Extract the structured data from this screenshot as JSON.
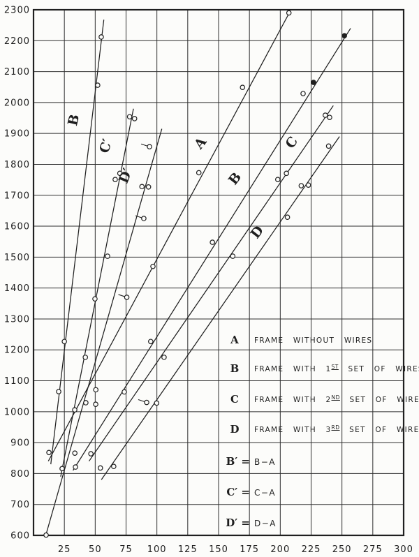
{
  "figure": {
    "background": "#fcfcfa",
    "ink": "#1f1f1f",
    "grid_color": "#2e2e2e"
  },
  "chart_data": {
    "type": "line",
    "title": "",
    "xlabel": "",
    "ylabel": "",
    "x_axis": {
      "min": 0,
      "max": 300,
      "gridline_step": 25,
      "ticks": [
        25,
        50,
        75,
        100,
        125,
        150,
        175,
        200,
        225,
        250,
        275,
        300
      ]
    },
    "y_axis": {
      "min": 600,
      "max": 2300,
      "gridline_step": 100,
      "ticks": [
        600,
        700,
        800,
        900,
        1000,
        1100,
        1200,
        1300,
        1400,
        1500,
        1600,
        1700,
        1800,
        1900,
        2000,
        2100,
        2200,
        2300
      ]
    },
    "grid": true,
    "series": [
      {
        "name": "A",
        "label": "A",
        "label_pos": [
          138,
          1860
        ],
        "label_rot": -52,
        "line": [
          [
            12,
            840
          ],
          [
            208,
            2295
          ]
        ],
        "points": [
          [
            12.5,
            868
          ],
          [
            96.8,
            1470
          ],
          [
            134,
            1773
          ],
          [
            169.4,
            2049
          ],
          [
            207,
            2290
          ]
        ],
        "filled": [],
        "tails": []
      },
      {
        "name": "B",
        "label": "B",
        "label_pos": [
          166,
          1745
        ],
        "label_rot": -52,
        "line": [
          [
            32,
            810
          ],
          [
            257,
            2240
          ]
        ],
        "points": [
          [
            34,
            821
          ],
          [
            73.6,
            1064
          ],
          [
            95,
            1227
          ],
          [
            145,
            1548
          ],
          [
            218.5,
            2029
          ],
          [
            227,
            2065
          ],
          [
            252,
            2216
          ]
        ],
        "filled": [
          5,
          6
        ],
        "tails": []
      },
      {
        "name": "C",
        "label": "C",
        "label_pos": [
          212,
          1862
        ],
        "label_rot": -52,
        "line": [
          [
            45,
            840
          ],
          [
            243,
            1990
          ]
        ],
        "points": [
          [
            46.5,
            864
          ],
          [
            105.8,
            1176
          ],
          [
            161.5,
            1503
          ],
          [
            198,
            1751
          ],
          [
            205,
            1771
          ],
          [
            236.5,
            1959
          ],
          [
            240,
            1952
          ]
        ],
        "filled": [],
        "tails": []
      },
      {
        "name": "D",
        "label": "D",
        "label_pos": [
          184,
          1572
        ],
        "label_rot": -52,
        "line": [
          [
            55,
            780
          ],
          [
            248,
            1890
          ]
        ],
        "points": [
          [
            54.2,
            818
          ],
          [
            65,
            823
          ],
          [
            91.7,
            1030
          ],
          [
            99.8,
            1028
          ],
          [
            205.8,
            1629
          ],
          [
            217,
            1731
          ],
          [
            222.8,
            1733
          ],
          [
            239.2,
            1859
          ]
        ],
        "filled": [],
        "tails": [
          2
        ]
      },
      {
        "name": "B-prime",
        "label": "B",
        "label_pos": [
          36,
          1940
        ],
        "label_rot": -76,
        "line": [
          [
            14,
            830
          ],
          [
            57,
            2268
          ]
        ],
        "points": [
          [
            20.4,
            1065
          ],
          [
            25,
            1227
          ],
          [
            52,
            2056
          ],
          [
            54.9,
            2212
          ]
        ],
        "filled": [],
        "tails": []
      },
      {
        "name": "C-prime",
        "label": "C′",
        "label_pos": [
          62,
          1855
        ],
        "label_rot": -72,
        "line": [
          [
            22,
            790
          ],
          [
            81,
            1980
          ]
        ],
        "points": [
          [
            23.2,
            816
          ],
          [
            33.4,
            1006
          ],
          [
            42,
            1176
          ],
          [
            49.8,
            1365
          ],
          [
            60,
            1503
          ],
          [
            66.2,
            1751
          ],
          [
            70,
            1771
          ],
          [
            77.9,
            1954
          ],
          [
            81.9,
            1948
          ]
        ],
        "filled": [],
        "tails": []
      },
      {
        "name": "D-prime",
        "label": "D′",
        "label_pos": [
          78,
          1758
        ],
        "label_rot": -68,
        "line": [
          [
            10,
            601
          ],
          [
            104,
            1915
          ]
        ],
        "points": [
          [
            10.2,
            601
          ],
          [
            33.5,
            866
          ],
          [
            42.4,
            1029
          ],
          [
            50.4,
            1024
          ],
          [
            50.5,
            1071
          ],
          [
            75.6,
            1370
          ],
          [
            89.4,
            1625
          ],
          [
            87.9,
            1728
          ],
          [
            93.2,
            1727
          ],
          [
            94,
            1857
          ]
        ],
        "filled": [],
        "tails": [
          5,
          6,
          9
        ]
      }
    ],
    "legend": {
      "rows": [
        {
          "letter": "A",
          "pre": "FRAME WITHOUT WIRES",
          "sup": "",
          "post": ""
        },
        {
          "letter": "B",
          "pre": "FRAME WITH 1",
          "sup": "ST",
          "post": " SET OF WIRES"
        },
        {
          "letter": "C",
          "pre": "FRAME WITH 2",
          "sup": "ND",
          "post": " SET OF WIRES"
        },
        {
          "letter": "D",
          "pre": "FRAME WITH 3",
          "sup": "RD",
          "post": " SET OF WIRES"
        }
      ],
      "prime_rows": [
        {
          "letter": "B′ =",
          "body": "B−A"
        },
        {
          "letter": "C′ =",
          "body": "C−A"
        },
        {
          "letter": "D′ =",
          "body": "D−A"
        }
      ]
    }
  }
}
